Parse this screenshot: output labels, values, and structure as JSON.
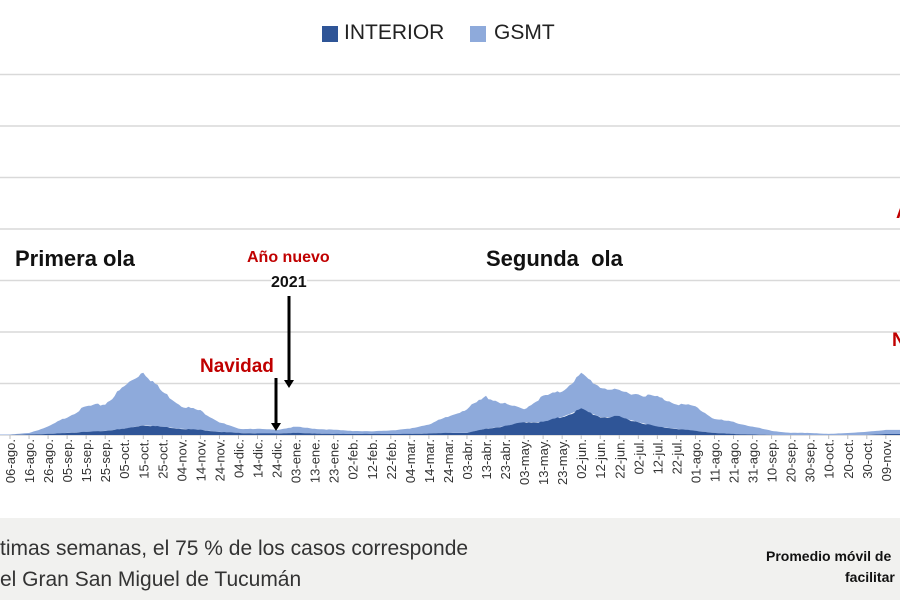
{
  "legend": {
    "interior": "INTERIOR",
    "gsmt": "GSMT"
  },
  "annotations": {
    "primera_ola": "Primera ola",
    "segunda_ola": "Segunda  ola",
    "ano_nuevo": "Año nuevo",
    "year": "2021",
    "navidad": "Navidad",
    "right_partial_top": "A",
    "right_partial_mid": "N"
  },
  "footer": {
    "line1": "timas semanas, el 75 % de los casos corresponde",
    "line2": "el Gran San Miguel de Tucumán",
    "note1": "Promedio móvil de",
    "note2": "facilitar"
  },
  "chart_data": {
    "type": "area",
    "stacked": true,
    "grid": true,
    "legend_position": "top",
    "colors": {
      "interior": "#2f5597",
      "gsmt": "#8eaadb"
    },
    "ylim": [
      0,
      7
    ],
    "categories": [
      "06-ago.",
      "16-ago.",
      "26-ago.",
      "05-sep.",
      "15-sep.",
      "25-sep.",
      "05-oct.",
      "15-oct.",
      "25-oct.",
      "04-nov.",
      "14-nov.",
      "24-nov.",
      "04-dic.",
      "14-dic.",
      "24-dic.",
      "03-ene.",
      "13-ene.",
      "23-ene.",
      "02-feb.",
      "12-feb.",
      "22-feb.",
      "04-mar.",
      "14-mar.",
      "24-mar.",
      "03-abr.",
      "13-abr.",
      "23-abr.",
      "03-may.",
      "13-may.",
      "23-may.",
      "02-jun.",
      "12-jun.",
      "22-jun.",
      "02-jul.",
      "12-jul.",
      "22-jul.",
      "01-ago.",
      "11-ago.",
      "21-ago.",
      "31-ago.",
      "10-sep.",
      "20-sep.",
      "30-sep.",
      "10-oct.",
      "20-oct.",
      "30-oct.",
      "09-nov."
    ],
    "series": [
      {
        "name": "INTERIOR",
        "values": [
          0,
          0.01,
          0.02,
          0.04,
          0.06,
          0.08,
          0.12,
          0.19,
          0.16,
          0.12,
          0.1,
          0.06,
          0.04,
          0.03,
          0.03,
          0.04,
          0.03,
          0.02,
          0.02,
          0.02,
          0.02,
          0.02,
          0.03,
          0.04,
          0.04,
          0.12,
          0.17,
          0.25,
          0.25,
          0.35,
          0.5,
          0.35,
          0.35,
          0.25,
          0.16,
          0.12,
          0.08,
          0.04,
          0.02,
          0.01,
          0,
          0,
          0,
          0,
          0,
          0,
          0.02
        ]
      },
      {
        "name": "GSMT",
        "values": [
          0.01,
          0.03,
          0.14,
          0.31,
          0.49,
          0.52,
          0.82,
          1.05,
          0.68,
          0.45,
          0.37,
          0.19,
          0.08,
          0.09,
          0.07,
          0.12,
          0.09,
          0.08,
          0.06,
          0.05,
          0.07,
          0.1,
          0.18,
          0.31,
          0.47,
          0.62,
          0.43,
          0.25,
          0.5,
          0.5,
          0.68,
          0.58,
          0.5,
          0.54,
          0.58,
          0.49,
          0.47,
          0.27,
          0.23,
          0.15,
          0.08,
          0.04,
          0.04,
          0.02,
          0.04,
          0.06,
          0.08
        ]
      }
    ]
  }
}
